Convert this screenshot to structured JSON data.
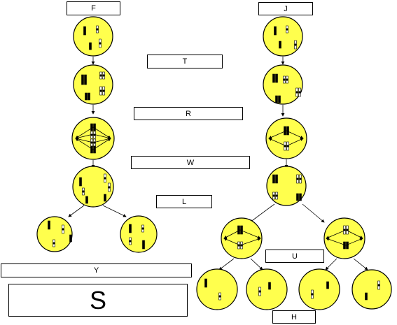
{
  "labels": {
    "F": "F",
    "J": "J",
    "T": "T",
    "R": "R",
    "W": "W",
    "L": "L",
    "U": "U",
    "Y": "Y",
    "S": "S",
    "H": "H"
  },
  "colors": {
    "cell": "#ffff4d",
    "outline": "#000000",
    "chromatid_light": "#ffffff"
  }
}
